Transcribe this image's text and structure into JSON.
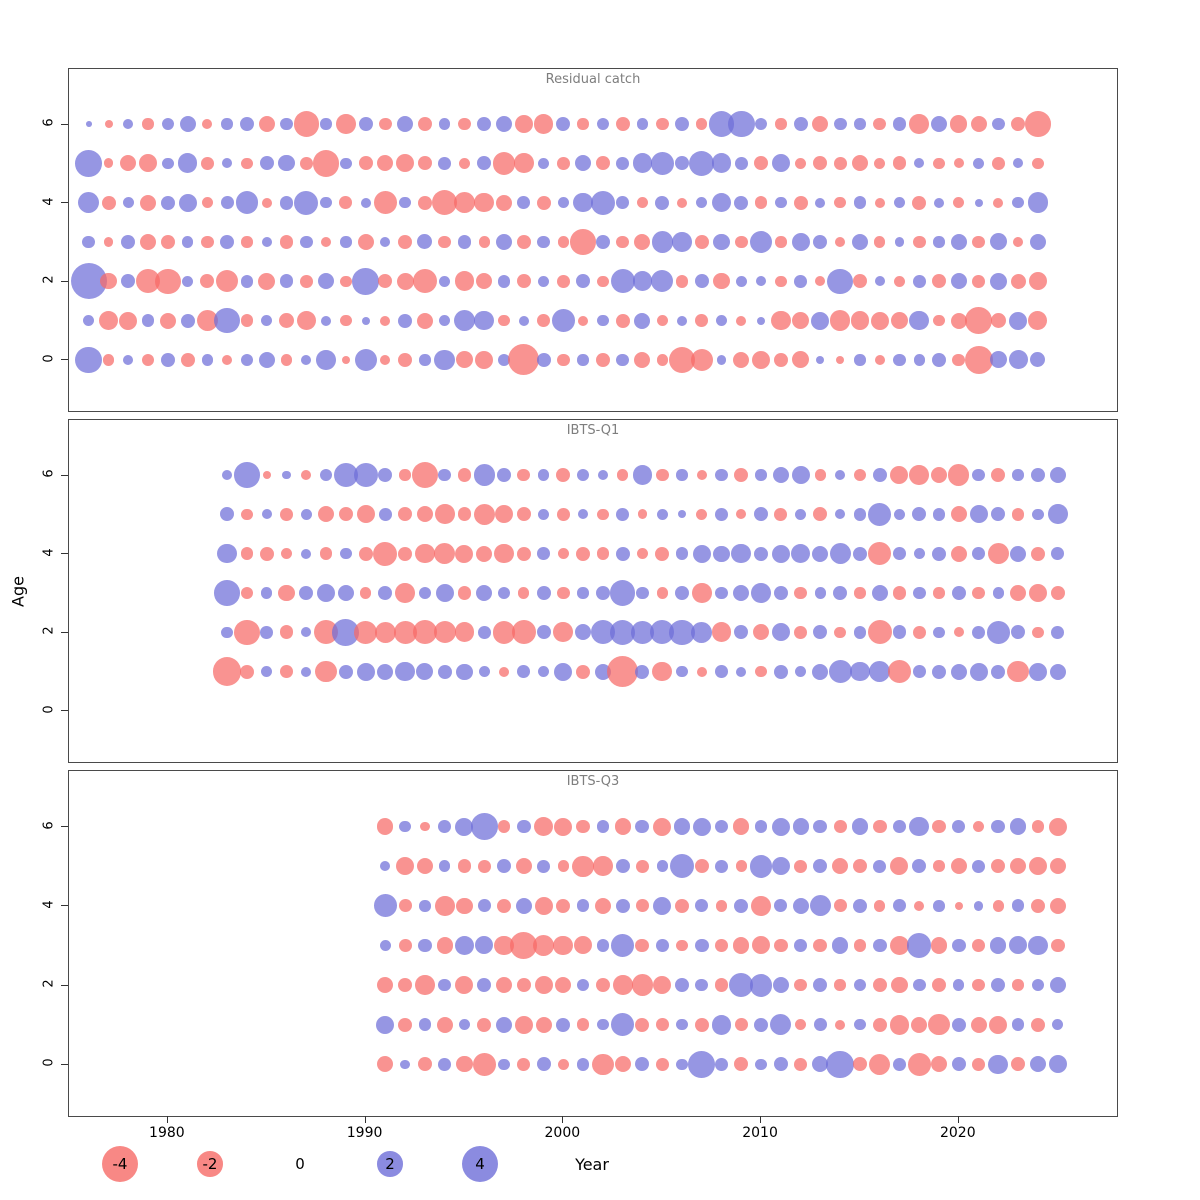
{
  "figure": {
    "x_label": "Year",
    "y_label": "Age"
  },
  "axes": {
    "x_ticks": [
      1980,
      1990,
      2000,
      2010,
      2020
    ],
    "y_ticks": [
      0,
      2,
      4,
      6
    ],
    "x_range": [
      1975,
      2028
    ],
    "y_range": [
      -1.3,
      7.4
    ]
  },
  "colors": {
    "negative": "#f66a66",
    "positive": "#6e6ed8",
    "panel_title": "#7e7e7e",
    "axis": "#333333"
  },
  "legend": {
    "entries": [
      {
        "label": "-4",
        "value": -4
      },
      {
        "label": "-2",
        "value": -2
      },
      {
        "label": "0",
        "value": 0
      },
      {
        "label": "2",
        "value": 2
      },
      {
        "label": "4",
        "value": 4
      }
    ]
  },
  "chart_data": [
    {
      "type": "scatter",
      "title": "Residual catch",
      "x_start_year": 1976,
      "note": "bubble area ~ |residual|; red = negative, blue = positive",
      "series": [
        {
          "age": 0,
          "values": [
            2.2,
            -0.4,
            0.3,
            -0.5,
            0.6,
            -0.6,
            0.4,
            -0.3,
            0.5,
            0.8,
            -0.4,
            0.3,
            1.2,
            -0.2,
            1.5,
            -0.3,
            -0.6,
            0.4,
            1.3,
            -0.9,
            -1.0,
            0.5,
            -3.0,
            0.6,
            -0.5,
            0.4,
            -0.6,
            0.5,
            -0.8,
            -0.4,
            -2.2,
            -1.5,
            0.3,
            -0.8,
            -1.0,
            -0.6,
            -0.9,
            0.2,
            -0.2,
            0.4,
            -0.3,
            0.5,
            0.4,
            0.6,
            -0.5,
            -2.4,
            0.9,
            1.1,
            0.7
          ]
        },
        {
          "age": 1,
          "values": [
            0.4,
            -1.2,
            -1.0,
            0.5,
            -0.8,
            0.6,
            -1.4,
            2.0,
            -0.5,
            0.4,
            -0.7,
            -1.1,
            0.3,
            -0.4,
            0.2,
            -0.3,
            0.6,
            -0.8,
            0.4,
            1.4,
            1.2,
            -0.4,
            0.3,
            -0.5,
            1.6,
            -0.3,
            0.4,
            -0.6,
            0.8,
            -0.4,
            0.3,
            -0.5,
            0.4,
            -0.3,
            0.2,
            -1.2,
            -0.9,
            1.0,
            -1.3,
            -1.1,
            -1.0,
            -0.9,
            1.2,
            -0.4,
            -0.8,
            -2.2,
            -0.7,
            1.0,
            -1.1
          ]
        },
        {
          "age": 2,
          "values": [
            4.0,
            -0.8,
            0.6,
            -1.8,
            -2.0,
            0.4,
            -0.6,
            -1.5,
            0.5,
            -0.9,
            0.6,
            -0.5,
            0.8,
            -0.4,
            2.2,
            -0.6,
            -0.9,
            -1.8,
            0.4,
            -1.2,
            -0.8,
            0.5,
            -0.6,
            0.4,
            -0.5,
            0.6,
            -0.4,
            1.8,
            1.2,
            1.5,
            -0.5,
            0.6,
            -0.8,
            0.4,
            0.3,
            -0.4,
            0.5,
            -0.3,
            2.0,
            -0.6,
            0.3,
            -0.4,
            0.5,
            -0.6,
            0.8,
            -0.5,
            0.9,
            -0.7,
            -1.0
          ]
        },
        {
          "age": 3,
          "values": [
            0.5,
            -0.3,
            0.6,
            -0.8,
            -0.6,
            0.4,
            -0.5,
            0.6,
            -0.4,
            0.3,
            -0.6,
            0.5,
            -0.3,
            0.4,
            -0.8,
            0.3,
            -0.6,
            0.7,
            -0.5,
            0.6,
            -0.4,
            0.8,
            -0.6,
            0.5,
            -0.4,
            -2.0,
            0.6,
            -0.5,
            -0.8,
            1.4,
            1.2,
            -0.6,
            0.8,
            -0.5,
            1.6,
            -0.4,
            1.0,
            0.6,
            -0.3,
            0.8,
            -0.4,
            0.3,
            -0.5,
            0.4,
            0.8,
            -0.5,
            0.9,
            -0.3,
            0.8
          ]
        },
        {
          "age": 4,
          "values": [
            1.4,
            -0.6,
            0.4,
            -0.8,
            0.6,
            1.0,
            -0.4,
            0.5,
            1.6,
            -0.3,
            0.6,
            1.8,
            0.4,
            -0.5,
            0.3,
            -1.6,
            0.4,
            -0.6,
            -2.0,
            -1.4,
            -1.2,
            -0.8,
            0.5,
            -0.6,
            0.4,
            1.2,
            1.8,
            0.5,
            -0.4,
            0.6,
            -0.3,
            0.4,
            1.2,
            0.6,
            -0.5,
            0.4,
            -0.6,
            0.3,
            -0.4,
            0.5,
            -0.3,
            0.4,
            -0.6,
            0.3,
            -0.4,
            0.2,
            -0.3,
            0.4,
            1.3
          ]
        },
        {
          "age": 5,
          "values": [
            2.2,
            -0.3,
            -0.8,
            -1.0,
            0.4,
            1.2,
            -0.5,
            0.3,
            -0.4,
            0.6,
            0.8,
            -0.5,
            -2.2,
            0.4,
            -0.6,
            -0.8,
            -1.0,
            -0.6,
            0.5,
            -0.4,
            0.6,
            -1.6,
            -1.2,
            0.4,
            -0.5,
            0.8,
            -0.6,
            0.5,
            1.2,
            1.6,
            0.6,
            2.0,
            1.2,
            0.5,
            -0.6,
            1.0,
            -0.4,
            -0.6,
            -0.5,
            -0.8,
            -0.4,
            -0.6,
            0.3,
            -0.4,
            -0.3,
            0.4,
            -0.5,
            0.3,
            -0.4
          ]
        },
        {
          "age": 6,
          "values": [
            0.1,
            -0.2,
            0.3,
            -0.4,
            0.5,
            0.8,
            -0.3,
            0.4,
            0.6,
            -0.8,
            0.5,
            -2.0,
            0.4,
            -1.2,
            0.6,
            -0.5,
            0.8,
            -0.6,
            0.4,
            -0.5,
            0.6,
            0.8,
            -1.0,
            -1.2,
            0.6,
            -0.4,
            0.5,
            -0.6,
            0.4,
            -0.5,
            0.6,
            -0.4,
            2.0,
            2.2,
            0.5,
            -0.4,
            0.6,
            -0.8,
            0.5,
            0.4,
            -0.5,
            0.6,
            -1.2,
            0.8,
            -0.9,
            -0.8,
            0.5,
            -0.6,
            -2.0
          ]
        }
      ]
    },
    {
      "type": "scatter",
      "title": "IBTS-Q1",
      "x_start_year": 1983,
      "note": "bubble area ~ |residual|; red = negative, blue = positive",
      "series": [
        {
          "age": 1,
          "values": [
            -2.5,
            -0.6,
            0.4,
            -0.5,
            0.3,
            -1.4,
            0.6,
            1.0,
            0.8,
            1.2,
            0.9,
            0.6,
            0.8,
            0.4,
            -0.3,
            0.5,
            0.4,
            1.0,
            -0.6,
            0.8,
            -3.0,
            0.6,
            -1.2,
            0.4,
            -0.3,
            0.5,
            0.3,
            -0.4,
            0.6,
            0.4,
            0.8,
            1.6,
            1.2,
            1.4,
            -1.6,
            0.5,
            0.6,
            0.8,
            1.0,
            0.6,
            -1.4,
            1.0,
            0.8
          ]
        },
        {
          "age": 2,
          "values": [
            0.4,
            -2.0,
            0.5,
            -0.6,
            0.3,
            -1.8,
            2.2,
            -1.6,
            -1.4,
            -1.6,
            -1.8,
            -1.5,
            -1.2,
            0.5,
            -1.6,
            -1.8,
            0.6,
            -1.2,
            0.8,
            1.8,
            2.0,
            1.6,
            1.8,
            2.0,
            1.4,
            -1.2,
            0.6,
            -0.8,
            1.0,
            -0.5,
            0.6,
            -0.4,
            0.5,
            -1.8,
            0.6,
            -0.5,
            0.4,
            -0.3,
            0.5,
            1.6,
            0.6,
            -0.4,
            0.5
          ]
        },
        {
          "age": 3,
          "values": [
            2.0,
            -0.5,
            0.4,
            -0.8,
            0.6,
            1.0,
            0.8,
            -0.4,
            0.6,
            -1.2,
            0.5,
            1.0,
            -0.6,
            0.8,
            0.5,
            -0.4,
            0.6,
            -0.5,
            0.4,
            0.6,
            2.0,
            0.5,
            -0.4,
            0.6,
            -1.2,
            0.5,
            0.8,
            1.2,
            0.6,
            -0.5,
            0.4,
            0.6,
            -0.4,
            0.8,
            -0.6,
            0.5,
            -0.4,
            0.6,
            -0.5,
            0.4,
            -0.8,
            -1.0,
            -0.6
          ]
        },
        {
          "age": 4,
          "values": [
            1.2,
            -0.5,
            -0.6,
            -0.4,
            0.3,
            -0.5,
            0.4,
            -0.6,
            -1.8,
            -0.6,
            -1.2,
            -1.4,
            -1.0,
            -0.8,
            -1.2,
            -0.6,
            0.5,
            -0.4,
            -0.6,
            -0.5,
            0.6,
            -0.4,
            -0.6,
            0.5,
            1.0,
            0.8,
            1.2,
            0.6,
            1.0,
            1.2,
            0.8,
            1.4,
            0.6,
            -1.6,
            0.5,
            0.4,
            0.6,
            -0.8,
            0.5,
            -1.4,
            0.8,
            -0.6,
            0.5
          ]
        },
        {
          "age": 5,
          "values": [
            0.6,
            -0.4,
            0.3,
            -0.5,
            0.4,
            -0.8,
            -0.6,
            -1.0,
            0.5,
            -0.6,
            -0.8,
            -1.2,
            -0.6,
            -1.4,
            -1.0,
            -0.6,
            0.4,
            -0.5,
            0.3,
            -0.4,
            0.5,
            -0.3,
            0.4,
            0.2,
            -0.4,
            0.5,
            -0.3,
            0.6,
            -0.5,
            0.4,
            -0.6,
            0.3,
            0.5,
            1.6,
            0.4,
            0.6,
            0.5,
            -0.8,
            1.0,
            0.6,
            -0.5,
            0.4,
            1.2
          ]
        },
        {
          "age": 6,
          "values": [
            0.3,
            2.0,
            -0.2,
            0.2,
            -0.3,
            0.5,
            1.8,
            1.8,
            0.6,
            -0.4,
            -2.2,
            0.5,
            -0.6,
            1.4,
            0.6,
            -0.5,
            0.4,
            -0.6,
            0.5,
            0.3,
            -0.4,
            1.2,
            -0.5,
            0.4,
            -0.3,
            0.5,
            -0.6,
            0.4,
            0.8,
            1.0,
            -0.4,
            0.3,
            -0.5,
            0.6,
            -1.0,
            -1.2,
            -0.8,
            -1.4,
            0.5,
            -0.6,
            0.4,
            0.6,
            0.8
          ]
        }
      ]
    },
    {
      "type": "scatter",
      "title": "IBTS-Q3",
      "x_start_year": 1991,
      "note": "bubble area ~ |residual|; red = negative, blue = positive",
      "series": [
        {
          "age": 0,
          "values": [
            -0.8,
            0.3,
            -0.6,
            0.5,
            -0.8,
            -1.6,
            0.4,
            -0.5,
            0.6,
            -0.4,
            0.5,
            -1.4,
            -0.8,
            0.6,
            -0.5,
            0.4,
            2.2,
            0.5,
            -0.6,
            0.4,
            0.6,
            -0.5,
            0.8,
            2.4,
            -0.6,
            -1.4,
            0.5,
            -1.6,
            -0.8,
            0.6,
            -0.5,
            1.2,
            -0.6,
            0.8,
            1.0
          ]
        },
        {
          "age": 1,
          "values": [
            1.0,
            -0.6,
            0.5,
            -0.8,
            0.4,
            -0.6,
            0.8,
            -1.0,
            -0.8,
            0.6,
            -0.5,
            0.4,
            1.6,
            -0.6,
            -0.5,
            0.4,
            -0.6,
            1.2,
            -0.5,
            0.6,
            1.4,
            -0.4,
            0.5,
            -0.3,
            0.4,
            -0.6,
            -1.2,
            -0.8,
            -1.4,
            0.6,
            -0.8,
            -1.0,
            0.5,
            -0.6,
            0.4
          ]
        },
        {
          "age": 2,
          "values": [
            -0.8,
            -0.6,
            -1.2,
            0.5,
            -1.0,
            0.6,
            -0.8,
            -0.6,
            -1.0,
            -0.8,
            0.5,
            -0.6,
            -1.2,
            -1.4,
            -1.0,
            0.6,
            0.5,
            -0.6,
            1.8,
            1.6,
            0.8,
            -0.5,
            0.6,
            -0.4,
            0.5,
            -0.6,
            -0.8,
            0.5,
            -0.6,
            0.4,
            -0.5,
            0.6,
            -0.4,
            0.5,
            0.8
          ]
        },
        {
          "age": 3,
          "values": [
            0.4,
            -0.5,
            0.6,
            -0.8,
            1.2,
            1.0,
            -1.2,
            -2.2,
            -1.4,
            -1.2,
            -1.0,
            0.5,
            1.6,
            -0.6,
            0.5,
            -0.4,
            0.6,
            -0.5,
            -0.8,
            -1.0,
            -0.6,
            0.5,
            -0.6,
            0.8,
            -0.5,
            0.6,
            -1.2,
            1.8,
            -0.8,
            0.6,
            -0.5,
            0.8,
            1.0,
            1.2,
            -0.6
          ]
        },
        {
          "age": 4,
          "values": [
            1.6,
            -0.5,
            0.4,
            -1.2,
            -0.8,
            0.5,
            -0.6,
            0.8,
            -1.0,
            -0.6,
            0.5,
            -0.8,
            0.6,
            -0.5,
            1.0,
            -0.6,
            0.5,
            -0.4,
            0.6,
            -1.2,
            0.5,
            0.8,
            1.4,
            -0.5,
            0.6,
            -0.4,
            0.5,
            -0.3,
            0.4,
            -0.2,
            0.3,
            -0.4,
            0.5,
            -0.6,
            -0.8
          ]
        },
        {
          "age": 5,
          "values": [
            0.3,
            -1.0,
            -0.8,
            0.4,
            -0.6,
            -0.5,
            0.6,
            -0.8,
            0.5,
            -0.4,
            -1.4,
            -1.2,
            0.6,
            -0.5,
            0.4,
            1.8,
            -0.6,
            0.5,
            -0.4,
            1.6,
            1.0,
            -0.5,
            0.6,
            -0.8,
            -0.6,
            0.5,
            -1.0,
            0.6,
            -0.4,
            -0.8,
            0.5,
            -0.6,
            -0.8,
            -1.0,
            -0.8
          ]
        },
        {
          "age": 6,
          "values": [
            -0.8,
            0.4,
            -0.3,
            0.5,
            1.0,
            2.2,
            -0.5,
            0.6,
            -1.2,
            -1.0,
            -0.6,
            0.5,
            -0.8,
            0.6,
            -1.0,
            0.8,
            1.0,
            0.6,
            -0.8,
            0.5,
            1.0,
            0.8,
            0.6,
            -0.5,
            0.8,
            -0.6,
            0.5,
            1.2,
            -0.6,
            0.5,
            -0.4,
            0.6,
            0.8,
            -0.5,
            -1.0
          ]
        }
      ]
    }
  ]
}
